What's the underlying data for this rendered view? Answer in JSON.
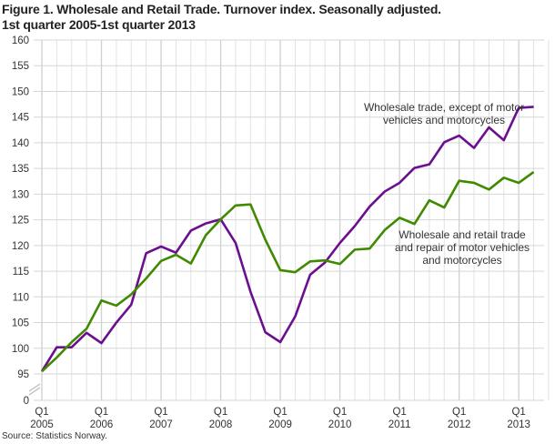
{
  "chart_data": {
    "type": "line",
    "title": "Figure 1. Wholesale and Retail Trade. Turnover index. Seasonally adjusted.",
    "subtitle": "1st quarter 2005-1st quarter 2013",
    "source": "Source: Statistics Norway.",
    "xlabel": "",
    "ylabel": "",
    "ylim": [
      95,
      160
    ],
    "y_axis_break": true,
    "yticks": [
      "0",
      "95",
      "100",
      "105",
      "110",
      "115",
      "120",
      "125",
      "130",
      "135",
      "140",
      "145",
      "150",
      "155",
      "160"
    ],
    "xtick_quarter": "Q1",
    "xtick_years": [
      "2005",
      "2006",
      "2007",
      "2008",
      "2009",
      "2010",
      "2011",
      "2012",
      "2013"
    ],
    "x_start": "2005Q1",
    "grid": true,
    "series": [
      {
        "name": "Wholesale trade, except of motor vehicles and motorcycles",
        "color": "#6b0f8f",
        "values": [
          95.5,
          100.2,
          100.2,
          103,
          101,
          105,
          108.5,
          118.5,
          119.8,
          118.6,
          122.9,
          124.3,
          125.1,
          120.5,
          111,
          103.1,
          101.2,
          106.2,
          114.3,
          116.7,
          120.5,
          123.8,
          127.6,
          130.5,
          132.2,
          135.1,
          135.8,
          140.1,
          141.4,
          139,
          143,
          140.5,
          146.8,
          147
        ]
      },
      {
        "name": "Wholesale and retail trade and repair of motor vehicles and motorcycles",
        "color": "#3f8a00",
        "values": [
          95.5,
          98.2,
          101.2,
          103.8,
          109.3,
          108.3,
          110.5,
          113.6,
          117,
          118.2,
          116.5,
          122,
          125.1,
          127.8,
          128,
          121.1,
          115.2,
          114.8,
          116.9,
          117.1,
          116.4,
          119.2,
          119.4,
          123,
          125.4,
          124.2,
          128.8,
          127.4,
          132.6,
          132.2,
          130.9,
          133.2,
          132.2,
          134.3
        ]
      }
    ],
    "annotations": [
      [
        "Wholesale trade, except of motor",
        "vehicles and motorcycles"
      ],
      [
        "Wholesale and retail trade",
        "and repair of motor vehicles",
        "and motorcycles"
      ]
    ]
  }
}
